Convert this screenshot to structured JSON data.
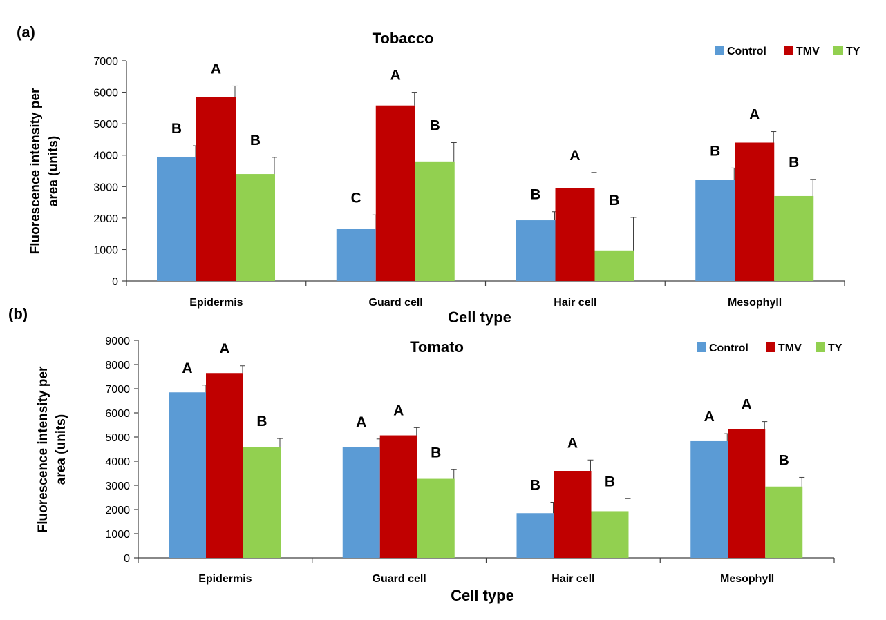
{
  "chart_data": [
    {
      "panel": "(a)",
      "type": "bar",
      "title": "Tobacco",
      "xlabel": "Cell type",
      "ylabel_lines": [
        "Fluorescence intensity per",
        "area (units)"
      ],
      "ylim": [
        0,
        7000
      ],
      "yticks": [
        0,
        1000,
        2000,
        3000,
        4000,
        5000,
        6000,
        7000
      ],
      "legend_position": "top-right",
      "categories": [
        "Epidermis",
        "Guard cell",
        "Hair cell",
        "Mesophyll"
      ],
      "series": [
        {
          "name": "Control",
          "color": "#5B9BD5",
          "values": [
            3950,
            1650,
            1930,
            3220
          ],
          "errors": [
            350,
            450,
            270,
            370
          ],
          "letters": [
            "B",
            "C",
            "B",
            "B"
          ]
        },
        {
          "name": "TMV",
          "color": "#C00000",
          "values": [
            5850,
            5580,
            2950,
            4400
          ],
          "errors": [
            350,
            420,
            500,
            350
          ],
          "letters": [
            "A",
            "A",
            "A",
            "A"
          ]
        },
        {
          "name": "TY",
          "color": "#92D050",
          "values": [
            3400,
            3800,
            970,
            2700
          ],
          "errors": [
            530,
            600,
            1050,
            530
          ],
          "letters": [
            "B",
            "B",
            "B",
            "B"
          ]
        }
      ]
    },
    {
      "panel": "(b)",
      "type": "bar",
      "title": "Tomato",
      "xlabel": "Cell type",
      "ylabel_lines": [
        "Fluorescence  intensity per",
        "area (units)"
      ],
      "ylim": [
        0,
        9000
      ],
      "yticks": [
        0,
        1000,
        2000,
        3000,
        4000,
        5000,
        6000,
        7000,
        8000,
        9000
      ],
      "legend_position": "top-right",
      "categories": [
        "Epidermis",
        "Guard cell",
        "Hair cell",
        "Mesophyll"
      ],
      "series": [
        {
          "name": "Control",
          "color": "#5B9BD5",
          "values": [
            6850,
            4600,
            1850,
            4830
          ],
          "errors": [
            300,
            320,
            450,
            310
          ],
          "letters": [
            "A",
            "A",
            "B",
            "A"
          ]
        },
        {
          "name": "TMV",
          "color": "#C00000",
          "values": [
            7650,
            5070,
            3600,
            5320
          ],
          "errors": [
            300,
            320,
            450,
            320
          ],
          "letters": [
            "A",
            "A",
            "A",
            "A"
          ]
        },
        {
          "name": "TY",
          "color": "#92D050",
          "values": [
            4600,
            3270,
            1930,
            2950
          ],
          "errors": [
            340,
            380,
            520,
            380
          ],
          "letters": [
            "B",
            "B",
            "B",
            "B"
          ]
        }
      ]
    }
  ]
}
